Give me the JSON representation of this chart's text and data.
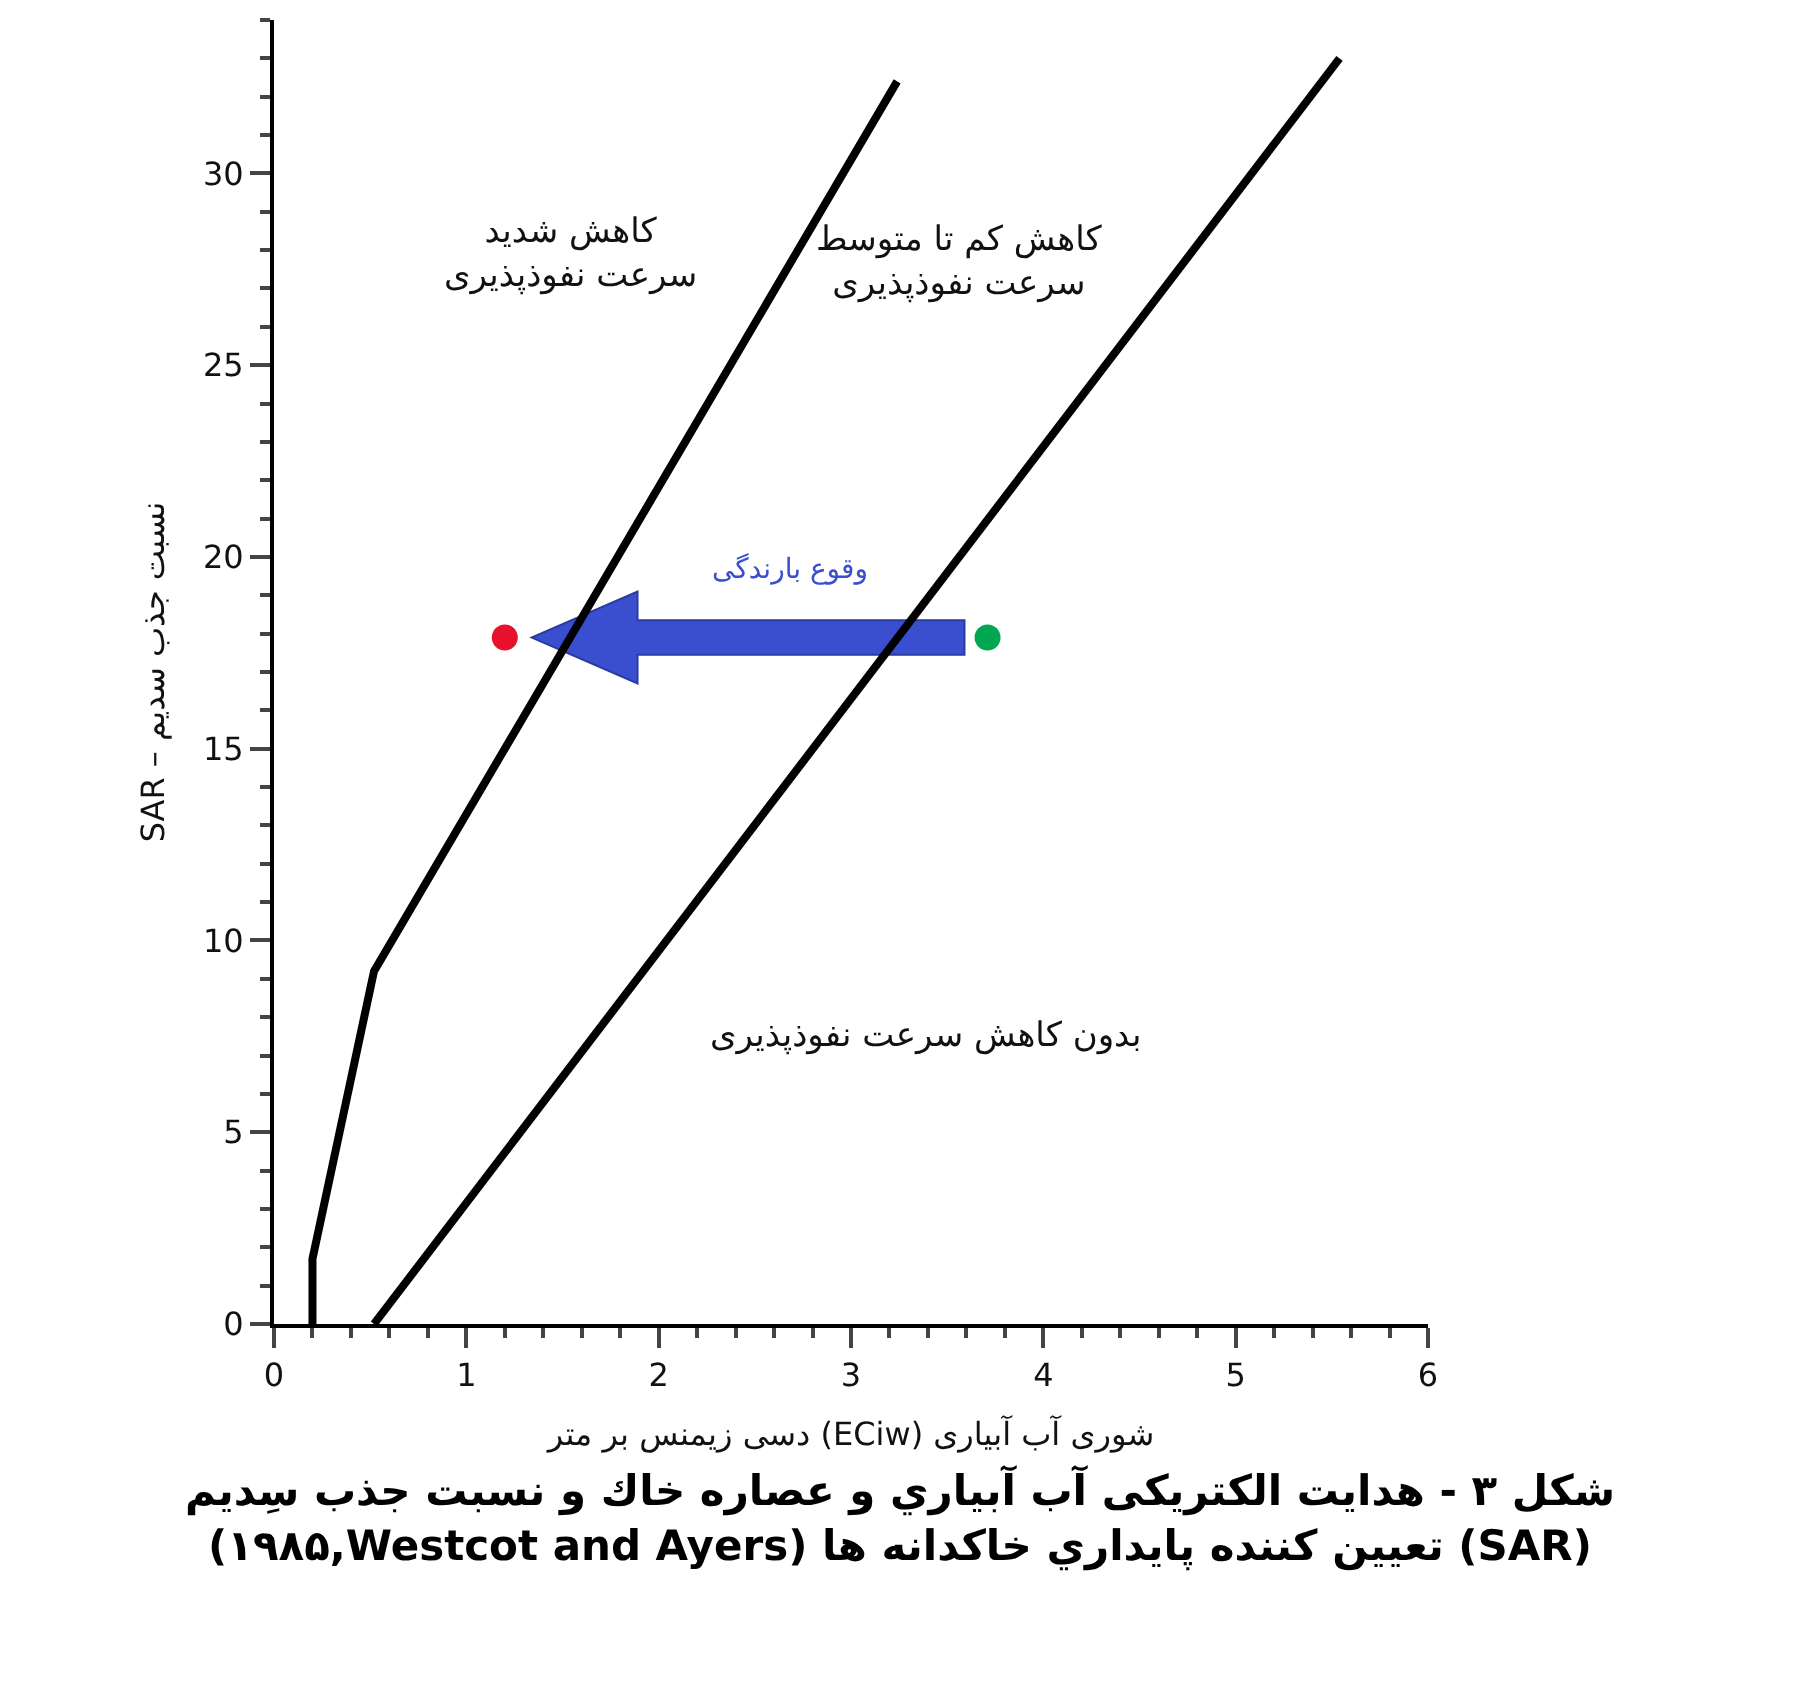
{
  "chart_data": {
    "type": "line",
    "title": "شکل ۳ - هدایت الکتریکی آب آبياري و عصاره خاك و نسبت جذب سِديم\n(SAR) تعيين كننده پايداري خاكدانه ها (Westcot and Ayers,١٩٨۵)",
    "xlabel": "شوری آب آبیاری (ECiw) دسی زیمنس بر متر",
    "ylabel": "SAR – نسبت جذب سدیم",
    "xlim": [
      0,
      6
    ],
    "xticks": [
      0,
      1,
      2,
      3,
      4,
      5,
      6
    ],
    "ylim": [
      0,
      34
    ],
    "yticks": [
      0,
      5,
      10,
      15,
      20,
      25,
      30
    ],
    "grid": false,
    "series": [
      {
        "color": "#000000",
        "x": [
          0.2,
          0.2,
          0.52,
          3.24
        ],
        "values": [
          0,
          1.7,
          9.2,
          32.4
        ]
      },
      {
        "color": "#000000",
        "x": [
          0.52,
          5.54
        ],
        "values": [
          0,
          33.0
        ]
      },
      {
        "type": "scatter",
        "marker": "circle",
        "colors": [
          "#00a651",
          "#e8112d"
        ],
        "x": [
          3.71,
          1.2
        ],
        "values": [
          17.9,
          17.9
        ]
      }
    ],
    "annotations": [
      "کاهش شدید\nسرعت نفوذپذیری",
      "کاهش کم تا متوسط\nسرعت نفوذپذیری",
      "بدون کاهش سرعت نفوذپذیری",
      "وقوع بارندگی"
    ]
  }
}
